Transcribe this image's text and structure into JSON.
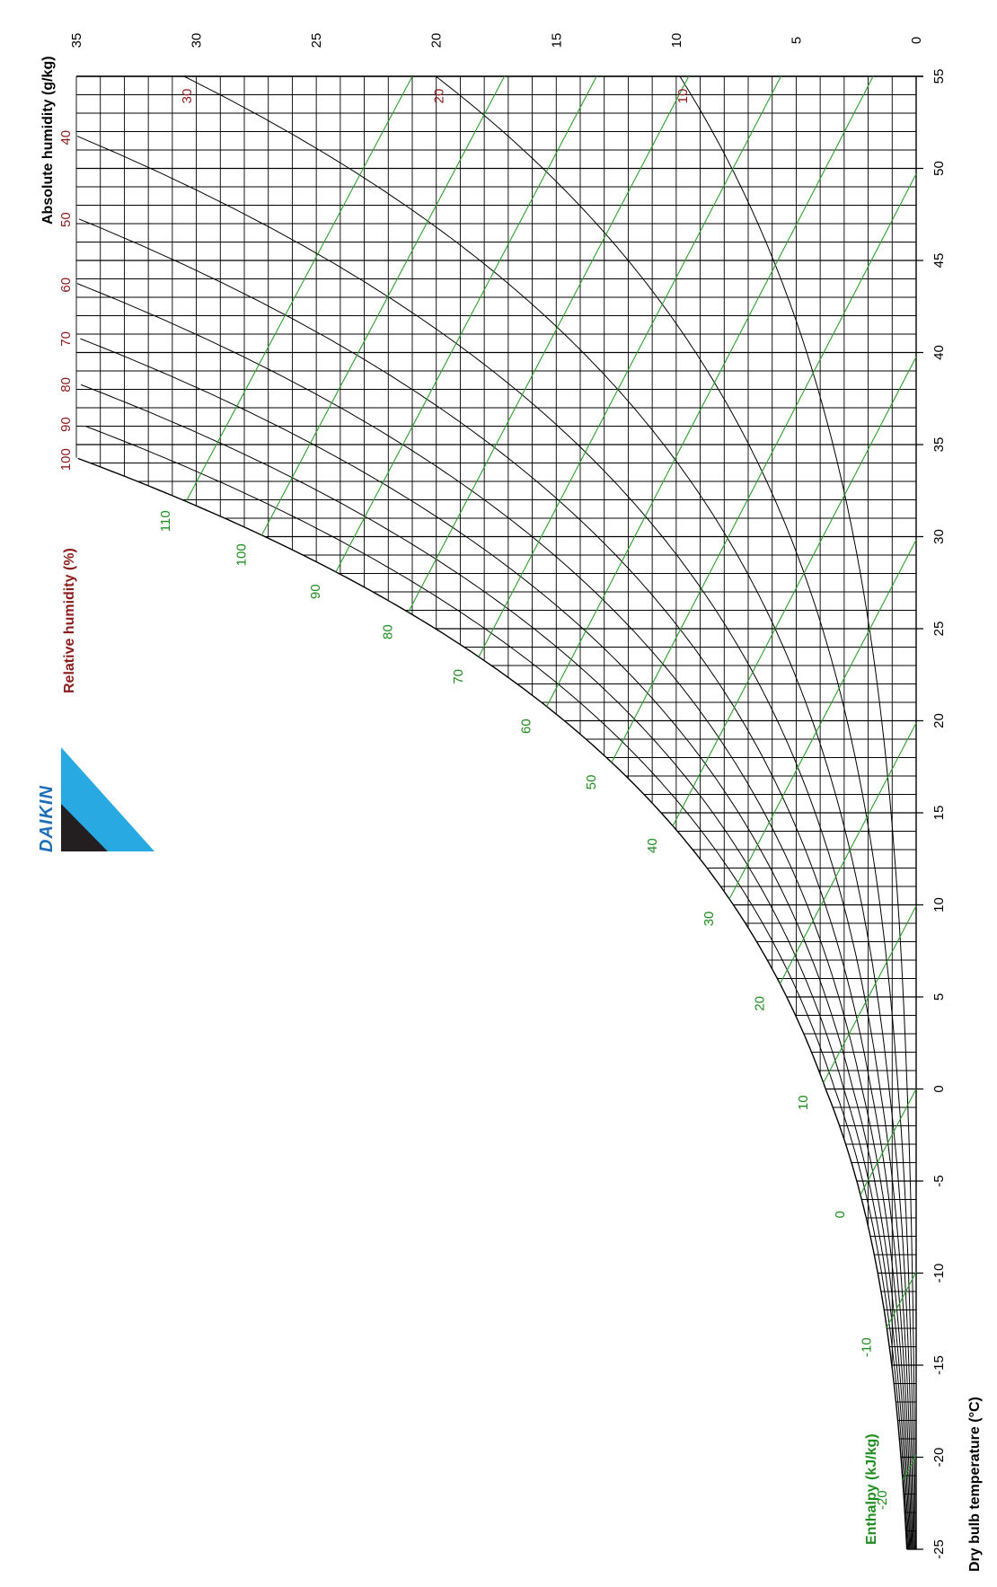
{
  "chart_data": {
    "type": "line",
    "subtype": "psychrometric chart (rotated 90°)",
    "title": "",
    "brand": "DAIKIN",
    "x_axis": {
      "label": "Dry bulb temperature (°C)",
      "range": [
        -25,
        55
      ],
      "ticks": [
        -25,
        -20,
        -15,
        -10,
        -5,
        0,
        5,
        10,
        15,
        20,
        25,
        30,
        35,
        40,
        45,
        50,
        55
      ],
      "tick_labels": [
        "-25",
        "-20",
        "-15",
        "-10",
        "-5",
        "0",
        "5",
        "10",
        "15",
        "20",
        "25",
        "30",
        "35",
        "40",
        "45",
        "50",
        "55"
      ]
    },
    "y_axis": {
      "label": "Absolute humidity (g/kg)",
      "range": [
        0,
        35
      ],
      "ticks": [
        0,
        5,
        10,
        15,
        20,
        25,
        30,
        35
      ],
      "tick_labels": [
        "0",
        "5",
        "10",
        "15",
        "20",
        "25",
        "30",
        "35"
      ]
    },
    "relative_humidity": {
      "label": "Relative humidity (%)",
      "values": [
        10,
        20,
        30,
        40,
        50,
        60,
        70,
        80,
        90,
        100
      ],
      "labels": [
        "10",
        "20",
        "30",
        "40",
        "50",
        "60",
        "70",
        "80",
        "90",
        "100"
      ],
      "color": "#8b1a1a"
    },
    "enthalpy": {
      "label": "Enthalpy (kJ/kg)",
      "values": [
        -20,
        -10,
        0,
        10,
        20,
        30,
        40,
        50,
        60,
        70,
        80,
        90,
        100,
        110
      ],
      "labels": [
        "-20",
        "-10",
        "0",
        "10",
        "20",
        "30",
        "40",
        "50",
        "60",
        "70",
        "80",
        "90",
        "100",
        "110"
      ],
      "color": "#1e8c1e"
    },
    "line_color": "#000000",
    "grid": true
  }
}
